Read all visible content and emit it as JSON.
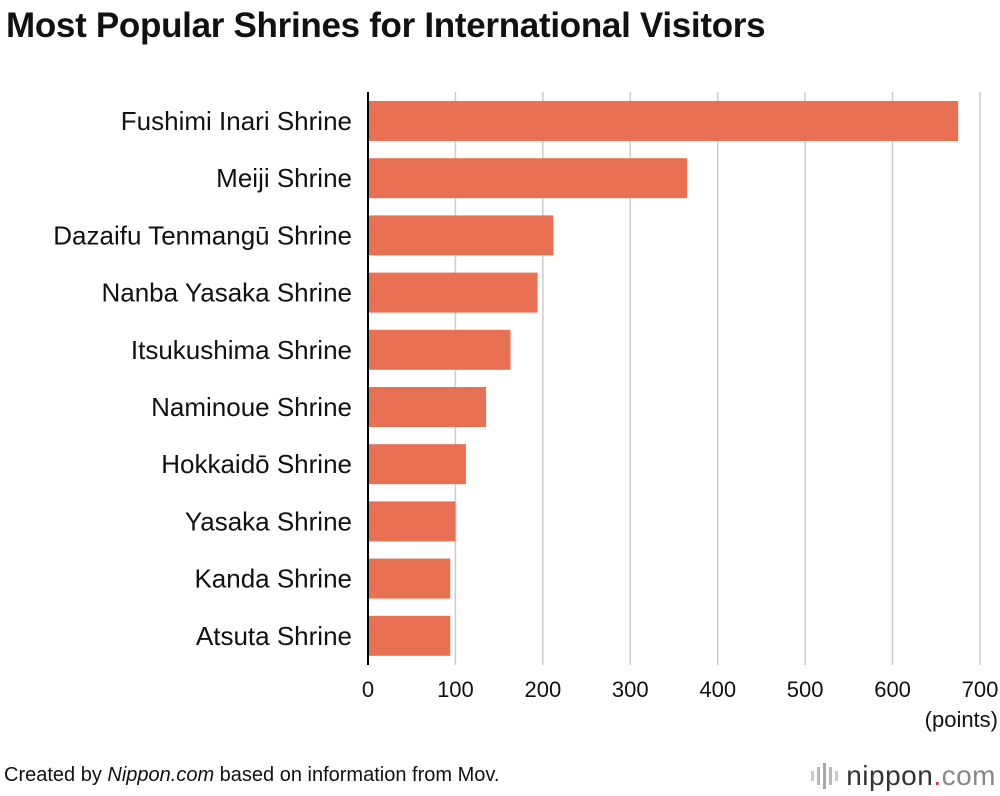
{
  "title": "Most Popular Shrines for International Visitors",
  "footer": {
    "created_by": "Created by ",
    "site": "Nippon.com",
    "source_text": " based on information from Mov."
  },
  "logo": {
    "name": "nippon",
    "dot": ".",
    "tld": "com",
    "icon": "sound-wave-icon"
  },
  "colors": {
    "bar": "#e87053",
    "grid": "#cccccc",
    "axis": "#000000",
    "logo_dot": "#d9322a"
  },
  "chart_data": {
    "type": "bar",
    "orientation": "horizontal",
    "title": "Most Popular Shrines for International Visitors",
    "categories": [
      "Fushimi Inari Shrine",
      "Meiji Shrine",
      "Dazaifu Tenmangū Shrine",
      "Nanba Yasaka Shrine",
      "Itsukushima Shrine",
      "Naminoue Shrine",
      "Hokkaidō Shrine",
      "Yasaka Shrine",
      "Kanda Shrine",
      "Atsuta Shrine"
    ],
    "values": [
      675,
      365,
      212,
      194,
      163,
      135,
      112,
      100,
      94,
      94
    ],
    "xlabel": "(points)",
    "ylabel": "",
    "xlim": [
      0,
      700
    ],
    "xticks": [
      0,
      100,
      200,
      300,
      400,
      500,
      600,
      700
    ],
    "grid": "vertical"
  }
}
